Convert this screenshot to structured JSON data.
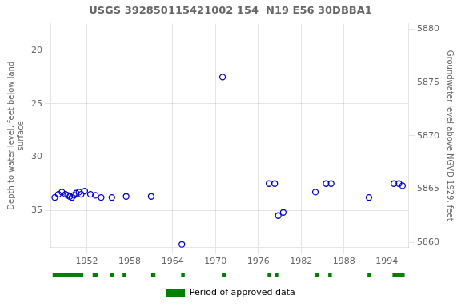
{
  "chart_data": {
    "type": "scatter",
    "title": "USGS 392850115421002 154  N19 E56 30DBBA1",
    "y_label": "Depth to water level, feet below land\nsurface",
    "y2_label": "Groundwater level above NGVD 1929, feet",
    "xlim": [
      1947,
      1997
    ],
    "xticks": [
      1952,
      1958,
      1964,
      1970,
      1976,
      1982,
      1988,
      1994
    ],
    "ylim": [
      38.5,
      17.5
    ],
    "yticks": [
      20,
      25,
      30,
      35
    ],
    "y2lim": [
      5859.5,
      5880.5
    ],
    "y2ticks": [
      5860,
      5865,
      5870,
      5875,
      5880
    ],
    "grid": true,
    "legend": "bottom",
    "series": [
      {
        "type": "scatter",
        "color": "#0000cc",
        "marker": "circle",
        "x": [
          1947.5,
          1948.0,
          1948.5,
          1949.0,
          1949.3,
          1949.6,
          1949.9,
          1950.2,
          1950.5,
          1950.9,
          1951.2,
          1951.7,
          1952.5,
          1953.2,
          1954.0,
          1955.5,
          1957.5,
          1961.0,
          1965.3,
          1971.0,
          1977.5,
          1978.3,
          1978.8,
          1979.5,
          1984.0,
          1985.5,
          1986.2,
          1991.5,
          1995.0,
          1995.7,
          1996.2
        ],
        "values": [
          33.8,
          33.5,
          33.3,
          33.5,
          33.6,
          33.7,
          33.8,
          33.6,
          33.4,
          33.3,
          33.5,
          33.2,
          33.5,
          33.6,
          33.8,
          33.8,
          33.7,
          33.7,
          38.2,
          22.5,
          32.5,
          32.5,
          35.5,
          35.2,
          33.3,
          32.5,
          32.5,
          33.8,
          32.5,
          32.5,
          32.7
        ]
      },
      {
        "type": "interval",
        "name": "Period of approved data",
        "color": "#008000",
        "periods": [
          [
            1947.2,
            1951.5
          ],
          [
            1952.8,
            1953.5
          ],
          [
            1955.2,
            1955.8
          ],
          [
            1957.0,
            1957.5
          ],
          [
            1961.0,
            1961.6
          ],
          [
            1965.2,
            1965.7
          ],
          [
            1971.0,
            1971.5
          ],
          [
            1977.3,
            1977.8
          ],
          [
            1978.3,
            1978.8
          ],
          [
            1984.0,
            1984.5
          ],
          [
            1985.8,
            1986.3
          ],
          [
            1991.3,
            1991.8
          ],
          [
            1994.8,
            1996.5
          ]
        ]
      }
    ]
  }
}
